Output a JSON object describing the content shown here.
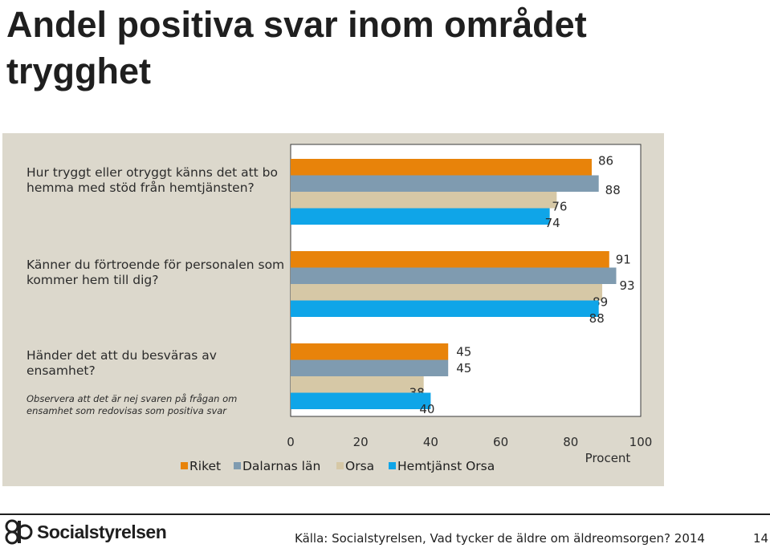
{
  "slide": {
    "title_line1": "Andel positiva svar inom området",
    "title_line2": "trygghet"
  },
  "questions": [
    {
      "label_line1": "Hur tryggt eller otryggt känns det att bo",
      "label_line2": "hemma med stöd från hemtjänsten?"
    },
    {
      "label_line1": "Känner du förtroende för personalen som",
      "label_line2": "kommer hem till dig?"
    },
    {
      "label_line1": "Händer det att du besväras av",
      "label_line2": "ensamhet?",
      "note_line1": "Observera att det är nej svaren på frågan om",
      "note_line2": "ensamhet som redovisas som positiva svar"
    }
  ],
  "chart_data": {
    "type": "bar",
    "orientation": "horizontal",
    "categories": [
      "Hur tryggt eller otryggt känns det att bo hemma med stöd från hemtjänsten?",
      "Känner du förtroende för personalen som kommer hem till dig?",
      "Händer det att du besväras av ensamhet?"
    ],
    "series": [
      {
        "name": "Riket",
        "color": "#e8830a",
        "values": [
          86,
          91,
          45
        ]
      },
      {
        "name": "Dalarnas län",
        "color": "#7f9bb0",
        "values": [
          88,
          93,
          45
        ]
      },
      {
        "name": "Orsa",
        "color": "#d6c8a6",
        "values": [
          76,
          89,
          38
        ]
      },
      {
        "name": "Hemtjänst Orsa",
        "color": "#0fa5e8",
        "values": [
          74,
          88,
          40
        ]
      }
    ],
    "xlim": [
      0,
      100
    ],
    "xticks": [
      "0",
      "20",
      "40",
      "60",
      "80",
      "100"
    ],
    "xlabel": "Procent",
    "legend_position": "bottom",
    "grid": false
  },
  "footer": {
    "logo_text": "Socialstyrelsen",
    "source": "Källa: Socialstyrelsen, Vad tycker de äldre om äldreomsorgen? 2014",
    "page_number": "14"
  }
}
